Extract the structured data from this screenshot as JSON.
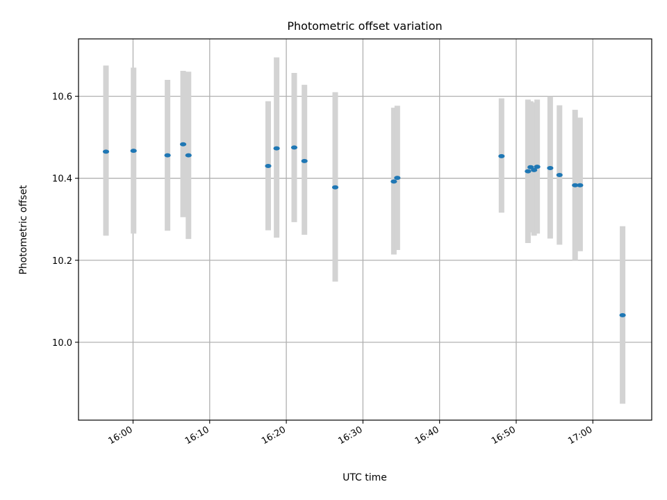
{
  "chart_data": {
    "type": "scatter",
    "title": "Photometric offset variation",
    "xlabel": "UTC time",
    "ylabel": "Photometric offset",
    "x_ticks": [
      "16:00",
      "16:10",
      "16:20",
      "16:30",
      "16:40",
      "16:50",
      "17:00"
    ],
    "y_ticks": [
      "10.0",
      "10.2",
      "10.4",
      "10.6"
    ],
    "xlim": [
      "15:52:53",
      "17:07:41"
    ],
    "ylim": [
      9.81,
      10.74
    ],
    "grid": true,
    "marker_color": "#1f77b4",
    "errorbar_color": "#d3d3d3",
    "points": [
      {
        "x": "15:56:28",
        "y": 10.465,
        "err_low": 10.26,
        "err_high": 10.675
      },
      {
        "x": "16:00:04",
        "y": 10.467,
        "err_low": 10.265,
        "err_high": 10.67
      },
      {
        "x": "16:04:30",
        "y": 10.456,
        "err_low": 10.272,
        "err_high": 10.64
      },
      {
        "x": "16:06:32",
        "y": 10.483,
        "err_low": 10.305,
        "err_high": 10.662
      },
      {
        "x": "16:07:14",
        "y": 10.456,
        "err_low": 10.252,
        "err_high": 10.66
      },
      {
        "x": "16:17:38",
        "y": 10.43,
        "err_low": 10.273,
        "err_high": 10.588
      },
      {
        "x": "16:18:44",
        "y": 10.473,
        "err_low": 10.255,
        "err_high": 10.695
      },
      {
        "x": "16:21:02",
        "y": 10.475,
        "err_low": 10.293,
        "err_high": 10.657
      },
      {
        "x": "16:22:22",
        "y": 10.442,
        "err_low": 10.262,
        "err_high": 10.628
      },
      {
        "x": "16:26:23",
        "y": 10.378,
        "err_low": 10.148,
        "err_high": 10.61
      },
      {
        "x": "16:34:02",
        "y": 10.392,
        "err_low": 10.214,
        "err_high": 10.572
      },
      {
        "x": "16:34:29",
        "y": 10.401,
        "err_low": 10.225,
        "err_high": 10.577
      },
      {
        "x": "16:48:05",
        "y": 10.454,
        "err_low": 10.316,
        "err_high": 10.595
      },
      {
        "x": "16:51:32",
        "y": 10.417,
        "err_low": 10.242,
        "err_high": 10.592
      },
      {
        "x": "16:51:53",
        "y": 10.427,
        "err_low": 10.268,
        "err_high": 10.588
      },
      {
        "x": "16:52:20",
        "y": 10.42,
        "err_low": 10.26,
        "err_high": 10.585
      },
      {
        "x": "16:52:44",
        "y": 10.428,
        "err_low": 10.265,
        "err_high": 10.592
      },
      {
        "x": "16:54:26",
        "y": 10.425,
        "err_low": 10.253,
        "err_high": 10.6
      },
      {
        "x": "16:55:39",
        "y": 10.408,
        "err_low": 10.238,
        "err_high": 10.578
      },
      {
        "x": "16:57:41",
        "y": 10.383,
        "err_low": 10.2,
        "err_high": 10.567
      },
      {
        "x": "16:58:20",
        "y": 10.383,
        "err_low": 10.222,
        "err_high": 10.548
      },
      {
        "x": "17:03:53",
        "y": 10.066,
        "err_low": 9.85,
        "err_high": 10.283
      }
    ]
  }
}
